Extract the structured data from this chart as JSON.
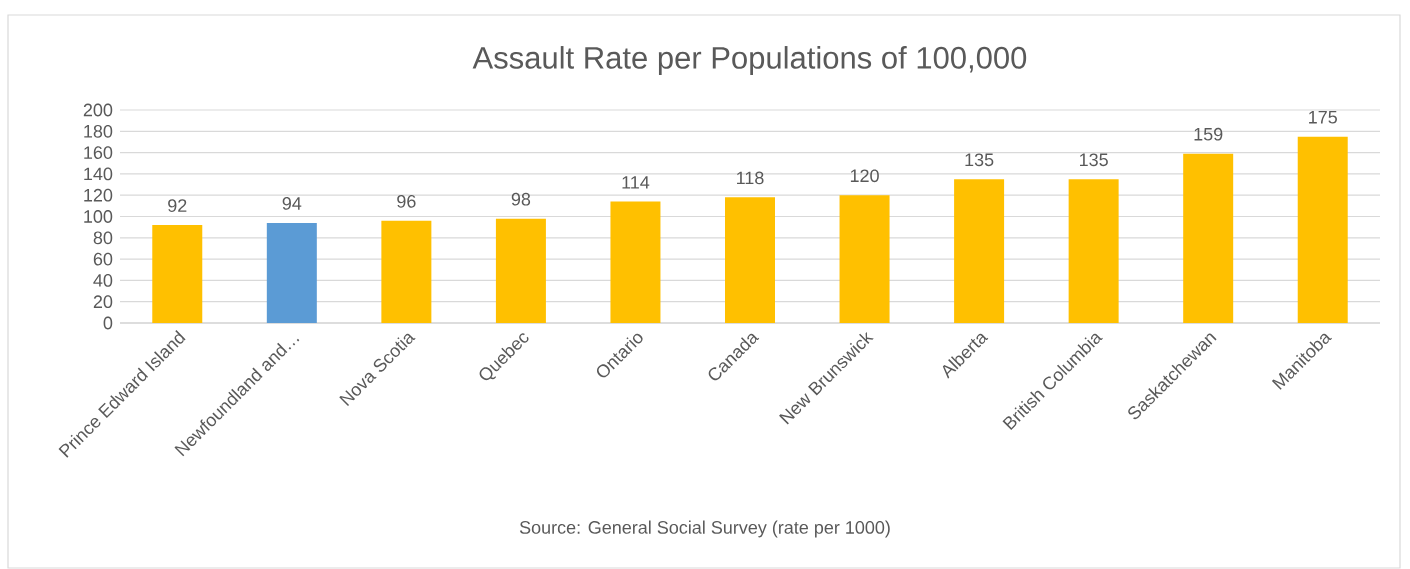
{
  "chart_data": {
    "type": "bar",
    "title": "Assault Rate per Populations of 100,000",
    "categories": [
      "Prince Edward Island",
      "Newfoundland and…",
      "Nova Scotia",
      "Quebec",
      "Ontario",
      "Canada",
      "New Brunswick",
      "Alberta",
      "British Columbia",
      "Saskatchewan",
      "Manitoba"
    ],
    "values": [
      92,
      94,
      96,
      98,
      114,
      118,
      120,
      135,
      135,
      159,
      175
    ],
    "colors": [
      "#ffc000",
      "#5b9bd5",
      "#ffc000",
      "#ffc000",
      "#ffc000",
      "#ffc000",
      "#ffc000",
      "#ffc000",
      "#ffc000",
      "#ffc000",
      "#ffc000"
    ],
    "ylim": [
      0,
      200
    ],
    "yticks": [
      0,
      20,
      40,
      60,
      80,
      100,
      120,
      140,
      160,
      180,
      200
    ],
    "grid": "y",
    "data_labels": true,
    "annotations": [
      "Source: General Social Survey (rate per 1000)"
    ]
  }
}
